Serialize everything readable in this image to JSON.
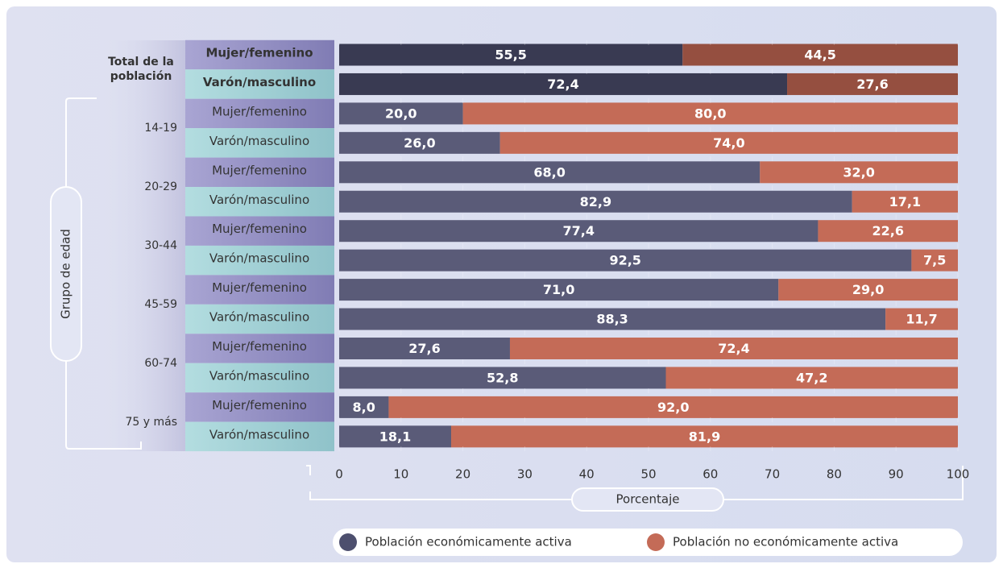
{
  "chart_data": {
    "type": "stacked-bar-horizontal",
    "y_axis_label": "Grupo de edad",
    "x_axis_label": "Porcentaje",
    "groups": [
      "Total de la población",
      "14-19",
      "20-29",
      "30-44",
      "45-59",
      "60-74",
      "75 y más"
    ],
    "categories": [
      "Mujer/femenino",
      "Varón/masculino",
      "Mujer/femenino",
      "Varón/masculino",
      "Mujer/femenino",
      "Varón/masculino",
      "Mujer/femenino",
      "Varón/masculino",
      "Mujer/femenino",
      "Varón/masculino",
      "Mujer/femenino",
      "Varón/masculino",
      "Mujer/femenino",
      "Varón/masculino"
    ],
    "series": [
      {
        "name": "Población económicamente activa",
        "color": "#4d4f6e",
        "colors": [
          "#393a52",
          "#393a52",
          "#5a5b78",
          "#5a5b78",
          "#5a5b78",
          "#5a5b78",
          "#5a5b78",
          "#5a5b78",
          "#5a5b78",
          "#5a5b78",
          "#5a5b78",
          "#5a5b78",
          "#5a5b78",
          "#5a5b78"
        ],
        "values": [
          55.5,
          72.4,
          20.0,
          26.0,
          68.0,
          82.9,
          77.4,
          92.5,
          71.0,
          88.3,
          27.6,
          52.8,
          8.0,
          18.1
        ],
        "value_labels": [
          "55,5",
          "72,4",
          "20,0",
          "26,0",
          "68,0",
          "82,9",
          "77,4",
          "92,5",
          "71,0",
          "88,3",
          "27,6",
          "52,8",
          "8,0",
          "18,1"
        ]
      },
      {
        "name": "Población no económicamente activa",
        "color": "#c46b57",
        "colors": [
          "#954f40",
          "#954f40",
          "#c46b57",
          "#c46b57",
          "#c46b57",
          "#c46b57",
          "#c46b57",
          "#c46b57",
          "#c46b57",
          "#c46b57",
          "#c46b57",
          "#c46b57",
          "#c46b57",
          "#c46b57"
        ],
        "values": [
          44.5,
          27.6,
          80.0,
          74.0,
          32.0,
          17.1,
          22.6,
          7.5,
          29.0,
          11.7,
          72.4,
          47.2,
          92.0,
          81.9
        ],
        "value_labels": [
          "44,5",
          "27,6",
          "80,0",
          "74,0",
          "32,0",
          "17,1",
          "22,6",
          "7,5",
          "29,0",
          "11,7",
          "72,4",
          "47,2",
          "92,0",
          "81,9"
        ]
      }
    ],
    "xlim": [
      0,
      100
    ],
    "xticks": [
      0,
      10,
      20,
      30,
      40,
      50,
      60,
      70,
      80,
      90,
      100
    ],
    "grid": true
  }
}
